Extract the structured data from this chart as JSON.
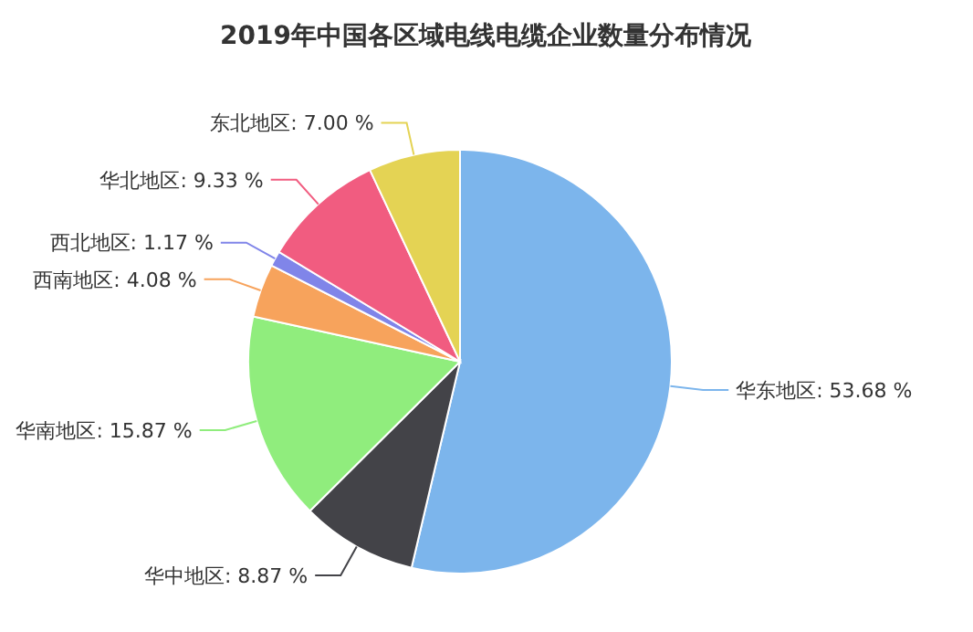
{
  "chart_data": {
    "type": "pie",
    "title": "2019年中国各区域电线电缆企业数量分布情况",
    "categories": [
      "华东地区",
      "华中地区",
      "华南地区",
      "西南地区",
      "西北地区",
      "华北地区",
      "东北地区"
    ],
    "values": [
      53.68,
      8.87,
      15.87,
      4.08,
      1.17,
      9.33,
      7.0
    ],
    "value_labels": [
      "53.68 %",
      "8.87 %",
      "15.87 %",
      "4.08 %",
      "1.17 %",
      "9.33 %",
      "7.00 %"
    ],
    "colors": [
      "#7cb5ec",
      "#434348",
      "#90ed7d",
      "#f7a35c",
      "#8085e9",
      "#f15c80",
      "#e4d354"
    ]
  }
}
